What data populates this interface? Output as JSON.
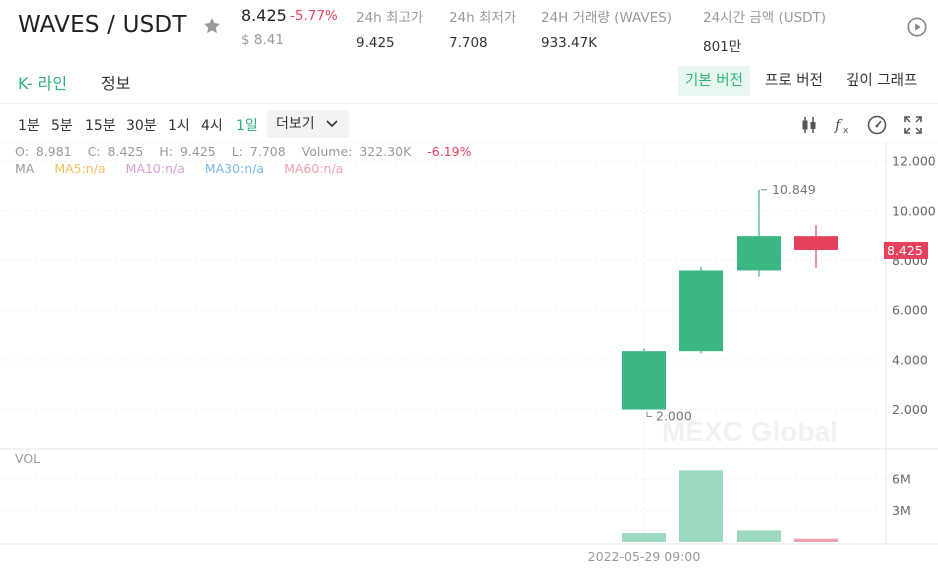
{
  "header": {
    "pair": "WAVES / USDT",
    "price": "8.425",
    "change": "-5.77%",
    "usd_price": "$ 8.41",
    "stats": [
      {
        "label": "24h 최고가",
        "value": "9.425"
      },
      {
        "label": "24h 최저가",
        "value": "7.708"
      },
      {
        "label": "24H 거래량 (WAVES)",
        "value": "933.47K"
      },
      {
        "label": "24시간 금액 (USDT)",
        "value": "801만"
      }
    ]
  },
  "tabs": [
    {
      "label": "K- 라인",
      "active": true
    },
    {
      "label": "정보",
      "active": false
    }
  ],
  "views": [
    {
      "label": "기본 버전",
      "active": true
    },
    {
      "label": "프로 버전",
      "active": false
    },
    {
      "label": "깊이 그래프",
      "active": false
    }
  ],
  "intervals": [
    {
      "label": "1분",
      "active": false
    },
    {
      "label": "5분",
      "active": false
    },
    {
      "label": "15분",
      "active": false
    },
    {
      "label": "30분",
      "active": false
    },
    {
      "label": "1시",
      "active": false
    },
    {
      "label": "4시",
      "active": false
    },
    {
      "label": "1일",
      "active": true
    }
  ],
  "more_label": "더보기",
  "icons": {
    "star": "star-icon",
    "play": "play-circle-icon",
    "tools": [
      "candlestick-type-icon",
      "indicator-fx-icon",
      "gauge-settings-icon",
      "fullscreen-icon"
    ]
  },
  "chart_data": {
    "type": "candlestick",
    "ohlc_labels": [
      {
        "label": "O:",
        "value": "8.981"
      },
      {
        "label": "C:",
        "value": "8.425"
      },
      {
        "label": "H:",
        "value": "9.425"
      },
      {
        "label": "L:",
        "value": "7.708"
      },
      {
        "label": "Volume:",
        "value": "322.30K"
      }
    ],
    "ohlc_change": "-6.19%",
    "ma_label": "MA",
    "ma_legend": [
      {
        "label": "MA5:n/a",
        "color": "#f0c060"
      },
      {
        "label": "MA10:n/a",
        "color": "#d8a0d8"
      },
      {
        "label": "MA30:n/a",
        "color": "#7ab8e8"
      },
      {
        "label": "MA60:n/a",
        "color": "#f0a0b0"
      }
    ],
    "candles": [
      {
        "open": 2.0,
        "high": 4.45,
        "low": 2.0,
        "close": 4.35,
        "volume": 0.85
      },
      {
        "open": 4.35,
        "high": 7.75,
        "low": 4.25,
        "close": 7.6,
        "volume": 6.8
      },
      {
        "open": 7.6,
        "high": 10.849,
        "low": 7.35,
        "close": 8.981,
        "volume": 1.1
      },
      {
        "open": 8.981,
        "high": 9.425,
        "low": 7.708,
        "close": 8.425,
        "volume": 0.3223
      }
    ],
    "y_ticks": [
      "12.000",
      "10.000",
      "8.000",
      "6.000",
      "4.000",
      "2.000"
    ],
    "y_tick_values": [
      12,
      10,
      8,
      6,
      4,
      2
    ],
    "ylim": [
      0.45,
      12.45
    ],
    "vol_label": "VOL",
    "vol_ticks": [
      "6M",
      "3M"
    ],
    "vol_tick_values": [
      6,
      3
    ],
    "vol_max": 7.4,
    "max_label": "10.849",
    "min_label": "2.000",
    "last_price": 8.425,
    "last_price_label": "8.425",
    "x_label": "2022-05-29 09:00",
    "watermark": "MEXC Global",
    "colors": {
      "up": "#3bb783",
      "down": "#e5415d",
      "up_vol": "#9dd9bf",
      "down_vol": "#f2a3b3",
      "grid": "#eeeeee"
    }
  }
}
